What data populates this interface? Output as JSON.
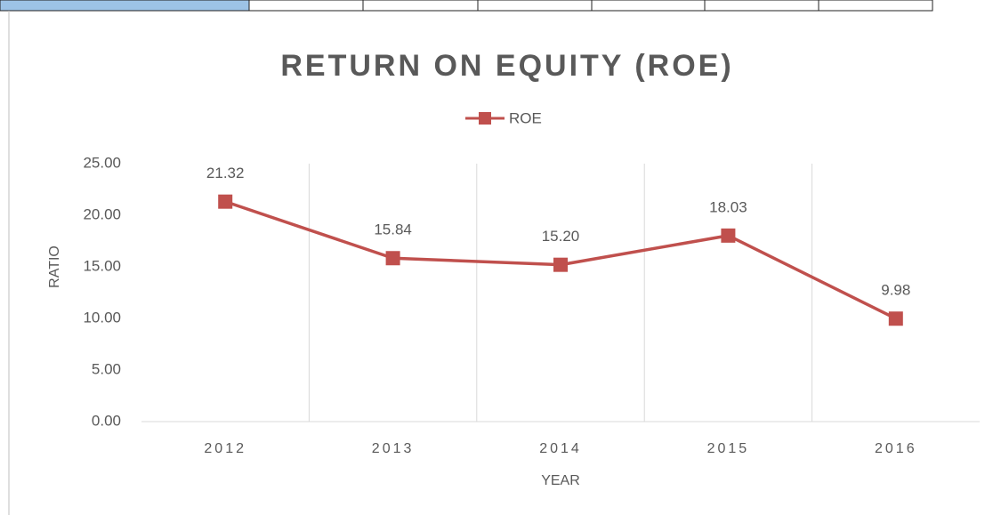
{
  "chart_data": {
    "type": "line",
    "title": "RETURN ON EQUITY (ROE)",
    "x_label": "YEAR",
    "y_label": "RATIO",
    "categories": [
      "2012",
      "2013",
      "2014",
      "2015",
      "2016"
    ],
    "series": [
      {
        "name": "ROE",
        "color": "#c0504d",
        "values": [
          21.32,
          15.84,
          15.2,
          18.03,
          9.98
        ],
        "value_labels": [
          "21.32",
          "15.84",
          "15.20",
          "18.03",
          "9.98"
        ]
      }
    ],
    "ylim": [
      0,
      25
    ],
    "yticks": [
      {
        "value": 0,
        "label": "0.00"
      },
      {
        "value": 5,
        "label": "5.00"
      },
      {
        "value": 10,
        "label": "10.00"
      },
      {
        "value": 15,
        "label": "15.00"
      },
      {
        "value": 20,
        "label": "20.00"
      },
      {
        "value": 25,
        "label": "25.00"
      }
    ],
    "grid": "vertical",
    "legend": "top"
  }
}
